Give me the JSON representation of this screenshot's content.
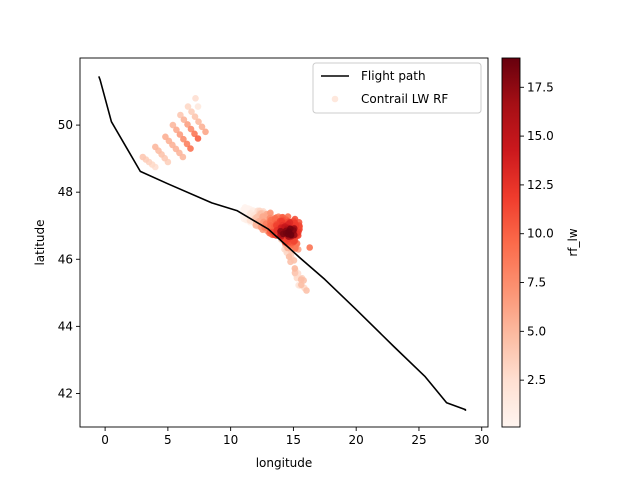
{
  "chart_data": {
    "type": "scatter",
    "xlabel": "longitude",
    "ylabel": "latitude",
    "xlim": [
      -2,
      30.5
    ],
    "ylim": [
      41.0,
      52.0
    ],
    "xticks": [
      0,
      5,
      10,
      15,
      20,
      25,
      30
    ],
    "yticks": [
      42,
      44,
      46,
      48,
      50
    ],
    "grid": false,
    "legend": {
      "placement": "top-right",
      "entries": [
        "Flight path",
        "Contrail LW RF"
      ]
    },
    "colorbar": {
      "label": "rf_lw",
      "range": [
        0.1,
        19.0
      ],
      "ticks": [
        2.5,
        5.0,
        7.5,
        10.0,
        12.5,
        15.0,
        17.5
      ],
      "tick_labels": [
        "2.5",
        "5.0",
        "7.5",
        "10.0",
        "12.5",
        "15.0",
        "17.5"
      ],
      "colormap": "Reds"
    },
    "flight_path": {
      "name": "Flight path",
      "color": "#000000",
      "x": [
        -0.5,
        -0.4,
        0.5,
        2.8,
        5.0,
        8.5,
        10.5,
        13.0,
        15.5,
        17.5,
        20.0,
        23.0,
        25.5,
        27.2,
        28.7,
        28.7
      ],
      "y": [
        51.45,
        51.35,
        50.1,
        48.62,
        48.25,
        47.68,
        47.45,
        46.9,
        46.05,
        45.4,
        44.5,
        43.4,
        42.5,
        41.72,
        41.52,
        41.48
      ]
    },
    "contrail_series": {
      "name": "Contrail LW RF",
      "bands": [
        {
          "x0": 3.0,
          "y0": 49.05,
          "x1": 4.0,
          "y1": 48.75,
          "n": 5,
          "v0": 4.0,
          "v1": 2.5
        },
        {
          "x0": 4.0,
          "y0": 49.35,
          "x1": 5.0,
          "y1": 48.9,
          "n": 5,
          "v0": 5.0,
          "v1": 3.5
        },
        {
          "x0": 4.8,
          "y0": 49.65,
          "x1": 6.2,
          "y1": 49.05,
          "n": 6,
          "v0": 5.5,
          "v1": 5.0
        },
        {
          "x0": 5.4,
          "y0": 50.0,
          "x1": 6.8,
          "y1": 49.3,
          "n": 6,
          "v0": 5.0,
          "v1": 9.0
        },
        {
          "x0": 6.0,
          "y0": 50.3,
          "x1": 7.4,
          "y1": 49.6,
          "n": 6,
          "v0": 4.0,
          "v1": 10.0
        },
        {
          "x0": 6.6,
          "y0": 50.55,
          "x1": 8.0,
          "y1": 49.8,
          "n": 6,
          "v0": 3.0,
          "v1": 6.0
        },
        {
          "x0": 7.2,
          "y0": 50.8,
          "x1": 7.4,
          "y1": 50.55,
          "n": 2,
          "v0": 2.5,
          "v1": 1.5
        }
      ],
      "blob": {
        "xmin": 11.0,
        "xmax": 15.5,
        "yc": 47.0,
        "spread": 0.6
      },
      "tail": {
        "x0": 14.0,
        "y0": 46.8,
        "x1": 16.0,
        "y1": 44.95
      },
      "hot": {
        "x": 14.5,
        "y": 46.8,
        "x2": 15.0,
        "y2": 46.65
      }
    }
  }
}
